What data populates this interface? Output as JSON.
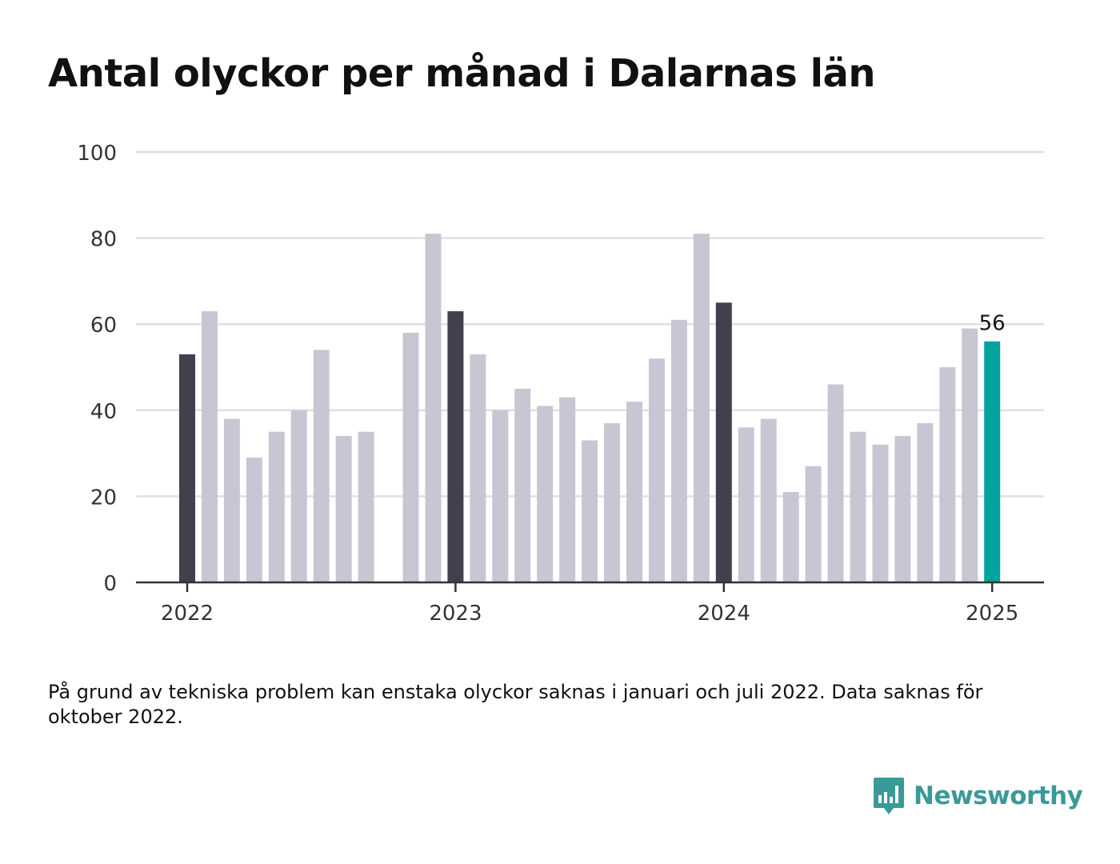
{
  "title": "Antal olyckor per månad i Dalarnas län",
  "footnote": "På grund av tekniska problem kan enstaka olyckor saknas i januari och juli 2022. Data saknas för oktober 2022.",
  "brand": {
    "name": "Newsworthy",
    "color": "#3a9a98",
    "icon": "bar-chart-logo-icon"
  },
  "colors": {
    "bar": "#c8c6d3",
    "highlight": "#42404c",
    "latest": "#00a49b",
    "grid": "#e0e0e0",
    "axis": "#333333"
  },
  "chart_data": {
    "type": "bar",
    "title": "Antal olyckor per månad i Dalarnas län",
    "xlabel": "",
    "ylabel": "",
    "ylim": [
      0,
      100
    ],
    "yticks": [
      0,
      20,
      40,
      60,
      80,
      100
    ],
    "xticks": [
      "2022",
      "2023",
      "2024",
      "2025"
    ],
    "grid": true,
    "latest_label": "56",
    "categories": [
      "2022-01",
      "2022-02",
      "2022-03",
      "2022-04",
      "2022-05",
      "2022-06",
      "2022-07",
      "2022-08",
      "2022-09",
      "2022-10",
      "2022-11",
      "2022-12",
      "2023-01",
      "2023-02",
      "2023-03",
      "2023-04",
      "2023-05",
      "2023-06",
      "2023-07",
      "2023-08",
      "2023-09",
      "2023-10",
      "2023-11",
      "2023-12",
      "2024-01",
      "2024-02",
      "2024-03",
      "2024-04",
      "2024-05",
      "2024-06",
      "2024-07",
      "2024-08",
      "2024-09",
      "2024-10",
      "2024-11",
      "2024-12",
      "2025-01"
    ],
    "values": [
      53,
      63,
      38,
      29,
      35,
      40,
      54,
      34,
      35,
      null,
      58,
      81,
      63,
      53,
      40,
      45,
      41,
      43,
      33,
      37,
      42,
      52,
      61,
      81,
      65,
      36,
      38,
      21,
      27,
      46,
      35,
      32,
      34,
      37,
      50,
      59,
      56
    ]
  }
}
